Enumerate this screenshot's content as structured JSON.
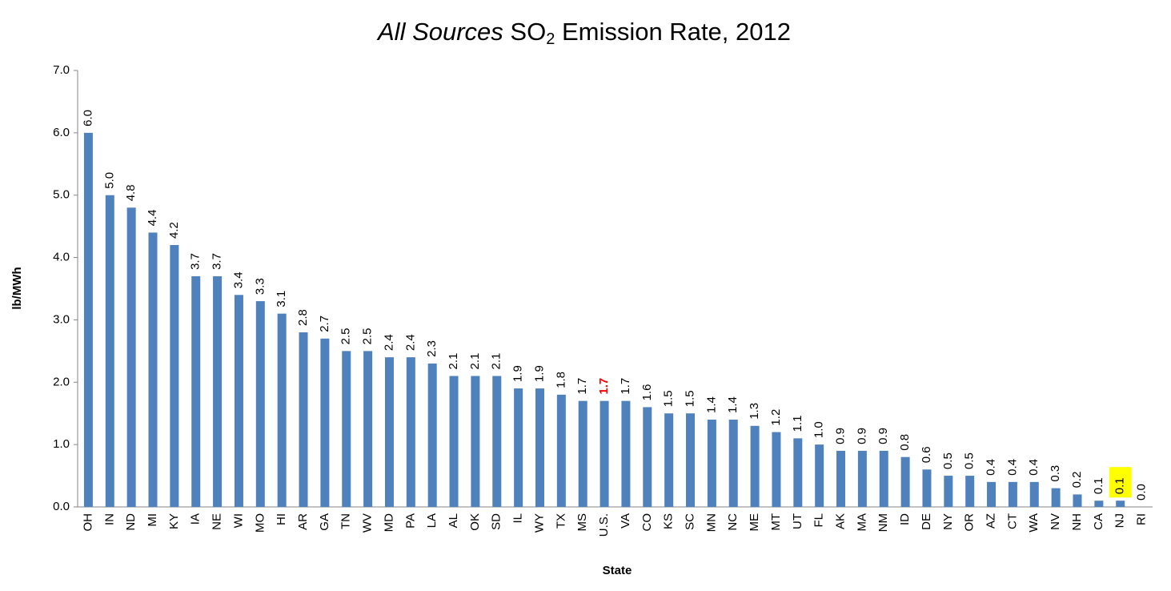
{
  "chart_data": {
    "type": "bar",
    "title": [
      "All Sources",
      " SO",
      "2",
      " Emission Rate, 2012"
    ],
    "x_label": "State",
    "y_label": "lb/MWh",
    "categories": [
      "OH",
      "IN",
      "ND",
      "MI",
      "KY",
      "IA",
      "NE",
      "WI",
      "MO",
      "HI",
      "AR",
      "GA",
      "TN",
      "WV",
      "MD",
      "PA",
      "LA",
      "AL",
      "OK",
      "SD",
      "IL",
      "WY",
      "TX",
      "MS",
      "U.S.",
      "VA",
      "CO",
      "KS",
      "SC",
      "MN",
      "NC",
      "ME",
      "MT",
      "UT",
      "FL",
      "AK",
      "MA",
      "NM",
      "ID",
      "DE",
      "NY",
      "OR",
      "AZ",
      "CT",
      "WA",
      "NV",
      "NH",
      "CA",
      "NJ",
      "RI"
    ],
    "values": [
      6.0,
      5.0,
      4.8,
      4.4,
      4.2,
      3.7,
      3.7,
      3.4,
      3.3,
      3.1,
      2.8,
      2.7,
      2.5,
      2.5,
      2.4,
      2.4,
      2.3,
      2.1,
      2.1,
      2.1,
      1.9,
      1.9,
      1.8,
      1.7,
      1.7,
      1.7,
      1.6,
      1.5,
      1.5,
      1.4,
      1.4,
      1.3,
      1.2,
      1.1,
      1.0,
      0.9,
      0.9,
      0.9,
      0.8,
      0.6,
      0.5,
      0.5,
      0.4,
      0.4,
      0.4,
      0.3,
      0.2,
      0.1,
      0.1,
      0.0
    ],
    "value_labels": [
      "6.0",
      "5.0",
      "4.8",
      "4.4",
      "4.2",
      "3.7",
      "3.7",
      "3.4",
      "3.3",
      "3.1",
      "2.8",
      "2.7",
      "2.5",
      "2.5",
      "2.4",
      "2.4",
      "2.3",
      "2.1",
      "2.1",
      "2.1",
      "1.9",
      "1.9",
      "1.8",
      "1.7",
      "1.7",
      "1.7",
      "1.6",
      "1.5",
      "1.5",
      "1.4",
      "1.4",
      "1.3",
      "1.2",
      "1.1",
      "1.0",
      "0.9",
      "0.9",
      "0.9",
      "0.8",
      "0.6",
      "0.5",
      "0.5",
      "0.4",
      "0.4",
      "0.4",
      "0.3",
      "0.2",
      "0.1",
      "0.1",
      "0.0"
    ],
    "color": "#4f81bd",
    "ylim": [
      0,
      7
    ],
    "yticks": [
      {
        "value": 0,
        "label": "0.0"
      },
      {
        "value": 1,
        "label": "1.0"
      },
      {
        "value": 2,
        "label": "2.0"
      },
      {
        "value": 3,
        "label": "3.0"
      },
      {
        "value": 4,
        "label": "4.0"
      },
      {
        "value": 5,
        "label": "5.0"
      },
      {
        "value": 6,
        "label": "6.0"
      },
      {
        "value": 7,
        "label": "7.0"
      }
    ],
    "grid": false,
    "label_highlights": [
      {
        "category": "U.S.",
        "color": "#ff0000",
        "bold": true
      },
      {
        "category": "NJ",
        "background": "#ffff00"
      }
    ]
  }
}
